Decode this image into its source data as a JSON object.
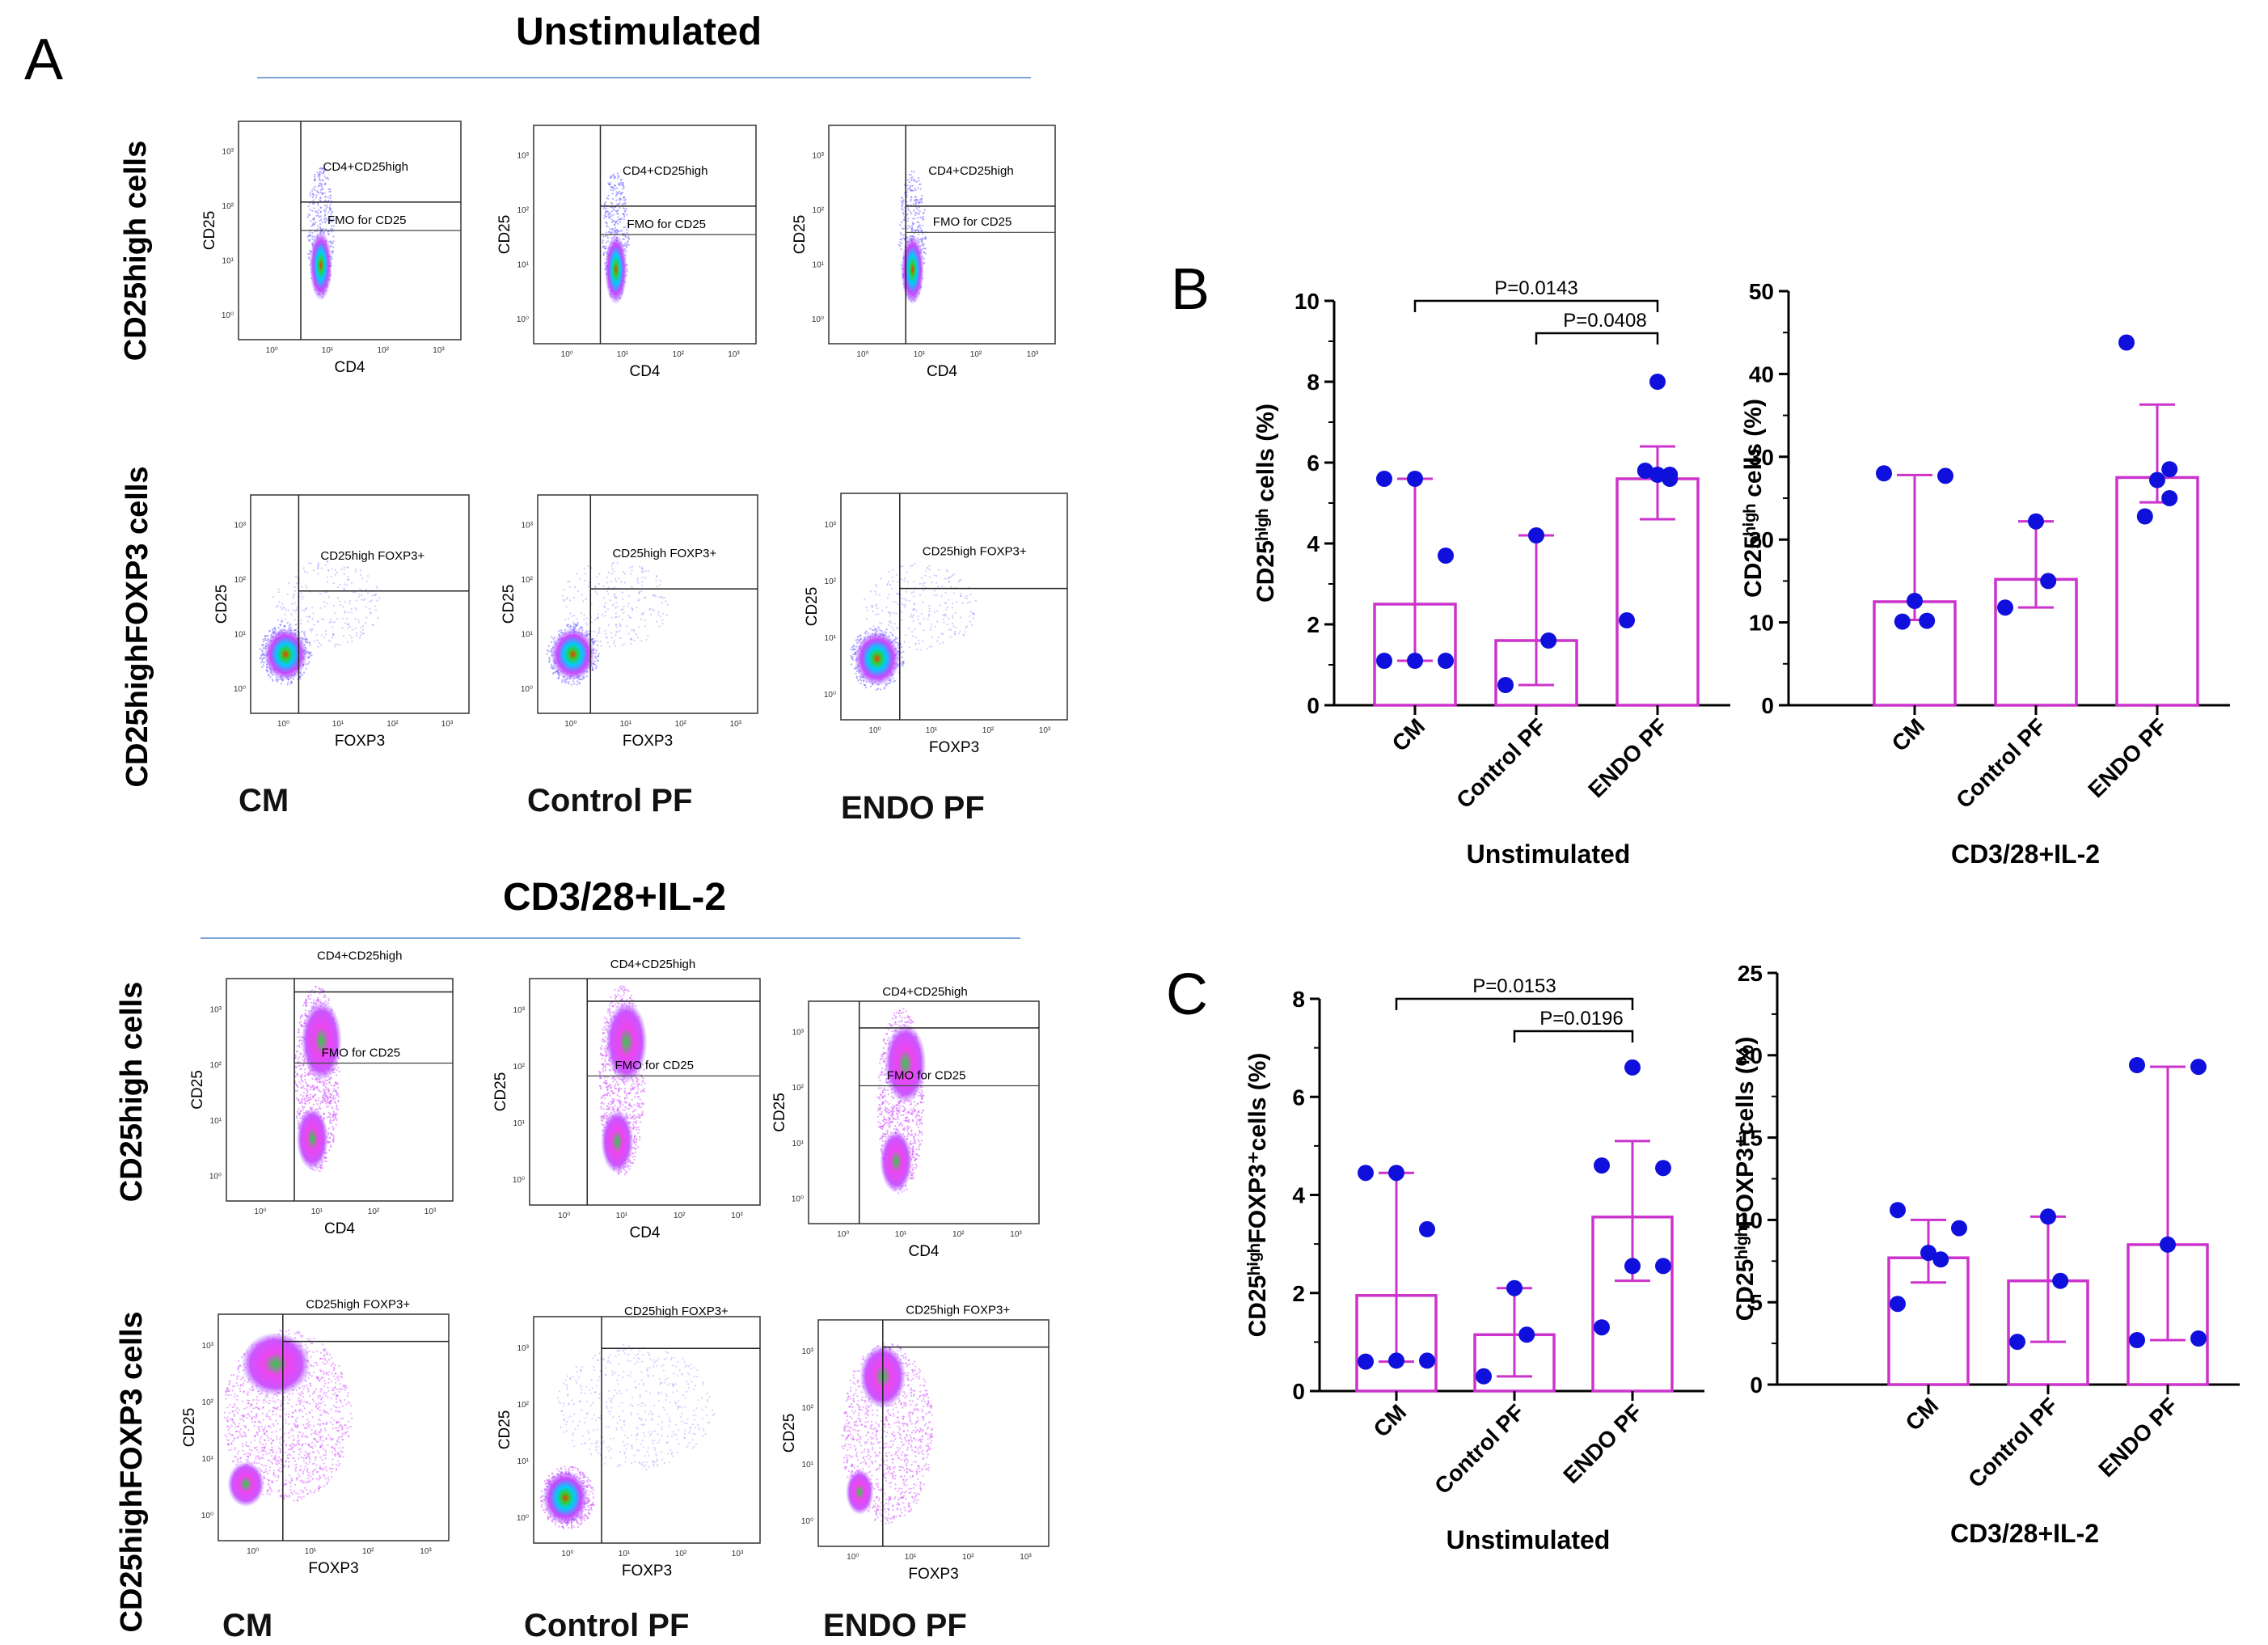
{
  "panel_a": {
    "letter": "A",
    "sections": [
      {
        "title": "Unstimulated",
        "rows": [
          {
            "label": "CD25high cells",
            "x_axis": "CD4",
            "y_axis": "CD25",
            "gate_labels": [
              "CD4+CD25high",
              "FMO for CD25"
            ]
          },
          {
            "label": "CD25highFOXP3 cells",
            "x_axis": "FOXP3",
            "y_axis": "CD25",
            "gate_labels": [
              "CD25high FOXP3+"
            ]
          }
        ],
        "sample_labels": [
          "CM",
          "Control PF",
          "ENDO PF"
        ]
      },
      {
        "title": "CD3/28+IL-2",
        "rows": [
          {
            "label": "CD25high cells",
            "x_axis": "CD4",
            "y_axis": "CD25",
            "gate_labels": [
              "CD4+CD25high",
              "FMO for CD25"
            ]
          },
          {
            "label": "CD25highFOXP3 cells",
            "x_axis": "FOXP3",
            "y_axis": "CD25",
            "gate_labels": [
              "CD25high FOXP3+"
            ]
          }
        ],
        "sample_labels": [
          "CM",
          "Control PF",
          "ENDO PF"
        ]
      }
    ],
    "tick_labels": [
      "10⁰",
      "10¹",
      "10²",
      "10³"
    ]
  },
  "panel_b_letter": "B",
  "panel_c_letter": "C",
  "chart_data": [
    {
      "id": "B-unstim",
      "type": "bar",
      "title": "",
      "categories": [
        "CM",
        "Control PF",
        "ENDO PF"
      ],
      "values": [
        2.5,
        1.6,
        5.6
      ],
      "error_low": [
        1.1,
        0.5,
        4.6
      ],
      "error_high": [
        5.6,
        4.2,
        6.4
      ],
      "points": [
        [
          1.1,
          1.1,
          1.1,
          3.7,
          5.6,
          5.6
        ],
        [
          0.5,
          1.6,
          4.2
        ],
        [
          2.1,
          5.6,
          5.7,
          5.7,
          5.8,
          8.0
        ]
      ],
      "ylim": [
        0,
        10
      ],
      "yticks": [
        "0",
        "2",
        "4",
        "6",
        "8",
        "10"
      ],
      "ylabel": "CD25ʰⁱᵍʰ cells (%)",
      "xlabel": "Unstimulated",
      "significance": [
        {
          "from": 0,
          "to": 2,
          "label": "P=0.0143"
        },
        {
          "from": 1,
          "to": 2,
          "label": "P=0.0408"
        }
      ]
    },
    {
      "id": "B-stim",
      "type": "bar",
      "title": "",
      "categories": [
        "CM",
        "Control PF",
        "ENDO PF"
      ],
      "values": [
        12.5,
        15.2,
        27.5
      ],
      "error_low": [
        10.3,
        11.8,
        24.5
      ],
      "error_high": [
        27.8,
        22.2,
        36.3
      ],
      "points": [
        [
          10.1,
          10.2,
          12.6,
          27.7,
          28.0
        ],
        [
          11.8,
          15.0,
          22.2
        ],
        [
          22.8,
          25.0,
          27.2,
          28.5,
          43.8
        ]
      ],
      "ylim": [
        0,
        50
      ],
      "yticks": [
        "0",
        "10",
        "20",
        "30",
        "40",
        "50"
      ],
      "ylabel": "CD25ʰⁱᵍʰ cells (%)",
      "xlabel": "CD3/28+IL-2",
      "significance": []
    },
    {
      "id": "C-unstim",
      "type": "bar",
      "title": "",
      "categories": [
        "CM",
        "Control PF",
        "ENDO PF"
      ],
      "values": [
        1.95,
        1.15,
        3.55
      ],
      "error_low": [
        0.6,
        0.3,
        2.25
      ],
      "error_high": [
        4.45,
        2.1,
        5.1
      ],
      "points": [
        [
          0.6,
          0.62,
          0.62,
          3.3,
          4.45,
          4.45
        ],
        [
          0.3,
          1.15,
          2.1
        ],
        [
          1.3,
          2.55,
          2.55,
          4.55,
          4.6,
          6.6
        ]
      ],
      "ylim": [
        0,
        8
      ],
      "yticks": [
        "0",
        "2",
        "4",
        "6",
        "8"
      ],
      "ylabel": "CD25ʰⁱᵍʰFOXP3⁺cells (%)",
      "xlabel": "Unstimulated",
      "significance": [
        {
          "from": 0,
          "to": 2,
          "label": "P=0.0153"
        },
        {
          "from": 1,
          "to": 2,
          "label": "P=0.0196"
        }
      ]
    },
    {
      "id": "C-stim",
      "type": "bar",
      "title": "",
      "categories": [
        "CM",
        "Control PF",
        "ENDO PF"
      ],
      "values": [
        7.7,
        6.3,
        8.5
      ],
      "error_low": [
        6.2,
        2.6,
        2.7
      ],
      "error_high": [
        10.0,
        10.2,
        19.3
      ],
      "points": [
        [
          4.9,
          7.6,
          8.0,
          9.5,
          10.6
        ],
        [
          2.6,
          6.3,
          10.2
        ],
        [
          2.7,
          2.8,
          8.5,
          19.3,
          19.4
        ]
      ],
      "ylim": [
        0,
        25
      ],
      "yticks": [
        "0",
        "5",
        "10",
        "15",
        "20",
        "25"
      ],
      "ylabel": "CD25ʰⁱᵍʰFOXP3⁺cells (%)",
      "xlabel": "CD3/28+IL-2",
      "significance": []
    }
  ],
  "colors": {
    "bar": "#cc33cc",
    "point": "#1010dd",
    "divider": "#7aa6d6"
  }
}
